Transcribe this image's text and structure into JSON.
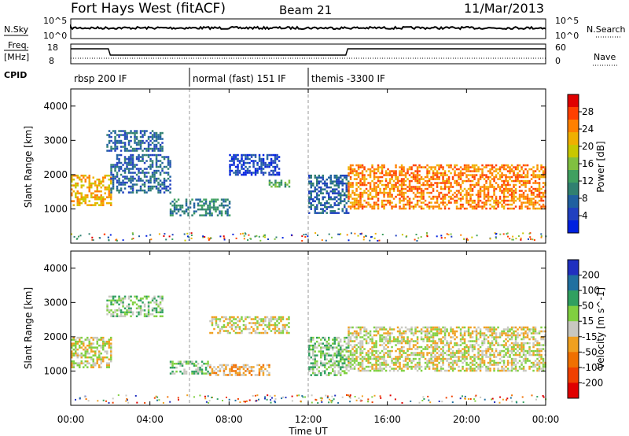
{
  "header": {
    "station": "Fort Hays West (fitACF)",
    "beam": "Beam 21",
    "date": "11/Mar/2013"
  },
  "summary_panels": {
    "nsky_label": "N.Sky",
    "nsky_ticks": [
      "10^5",
      "10^0"
    ],
    "nsearch_label": "N.Search",
    "nsearch_ticks": [
      "10^5",
      "10^0"
    ],
    "freq_label_line1": "Freq.",
    "freq_label_line2": "[MHz]",
    "freq_ticks": [
      "18",
      "8"
    ],
    "nave_label": "Nave",
    "nave_ticks": [
      "60",
      "0"
    ],
    "cpid_label": "CPID",
    "cpid_segments": [
      {
        "label": "rbsp 200 IF",
        "start_hour": 0,
        "end_hour": 6
      },
      {
        "label": "normal (fast) 151 IF",
        "start_hour": 6,
        "end_hour": 12
      },
      {
        "label": "themis -3300 IF",
        "start_hour": 12,
        "end_hour": 24
      }
    ]
  },
  "axes": {
    "y_label": "Slant Range [km]",
    "y_ticks": [
      "4000",
      "3000",
      "2000",
      "1000"
    ],
    "x_label": "Time UT",
    "x_ticks": [
      "00:00",
      "04:00",
      "08:00",
      "12:00",
      "16:00",
      "20:00",
      "00:00"
    ]
  },
  "power_scale": {
    "label": "Power [dB]",
    "ticks": [
      "28",
      "24",
      "20",
      "16",
      "12",
      "8",
      "4"
    ],
    "colors": [
      "#e00000",
      "#ff4000",
      "#ff8000",
      "#f0b000",
      "#c8c800",
      "#80c040",
      "#40a060",
      "#308070",
      "#2060a0",
      "#2040c0",
      "#0020e0"
    ]
  },
  "velocity_scale": {
    "label": "Velocity [m s^-1]",
    "ticks": [
      "200",
      "100",
      "50",
      "15",
      "-15",
      "-50",
      "-100",
      "-200"
    ],
    "colors": [
      "#2030c0",
      "#2070a0",
      "#30a060",
      "#80d040",
      "#c8c8c0",
      "#f0a020",
      "#f07000",
      "#f04000",
      "#e00000"
    ]
  },
  "chart_data": [
    {
      "type": "heatmap",
      "name": "Power",
      "xlabel": "Time UT",
      "ylabel": "Slant Range [km]",
      "xlim": [
        0,
        24
      ],
      "ylim": [
        0,
        4500
      ],
      "units": "dB",
      "echo_bands": [
        {
          "t_start": 0,
          "t_end": 2,
          "range_low": 1100,
          "range_high": 2000,
          "power": 22
        },
        {
          "t_start": 2,
          "t_end": 5,
          "range_low": 1500,
          "range_high": 2600,
          "power": 10
        },
        {
          "t_start": 1.8,
          "t_end": 4.6,
          "range_low": 2700,
          "range_high": 3300,
          "power": 8
        },
        {
          "t_start": 5,
          "t_end": 8,
          "range_low": 800,
          "range_high": 1300,
          "power": 12
        },
        {
          "t_start": 8,
          "t_end": 10.5,
          "range_low": 2000,
          "range_high": 2600,
          "power": 6
        },
        {
          "t_start": 10,
          "t_end": 11,
          "range_low": 1650,
          "range_high": 1850,
          "power": 14
        },
        {
          "t_start": 12,
          "t_end": 14,
          "range_low": 900,
          "range_high": 2000,
          "power": 10
        },
        {
          "t_start": 14,
          "t_end": 24,
          "range_low": 1000,
          "range_high": 2300,
          "power": 24
        }
      ]
    },
    {
      "type": "heatmap",
      "name": "Velocity",
      "xlabel": "Time UT",
      "ylabel": "Slant Range [km]",
      "xlim": [
        0,
        24
      ],
      "ylim": [
        0,
        4500
      ],
      "units": "m s^-1",
      "echo_bands": [
        {
          "t_start": 0,
          "t_end": 2,
          "range_low": 1100,
          "range_high": 2000,
          "velocity": 0
        },
        {
          "t_start": 1.8,
          "t_end": 4.6,
          "range_low": 2600,
          "range_high": 3200,
          "velocity": 60
        },
        {
          "t_start": 5,
          "t_end": 7,
          "range_low": 900,
          "range_high": 1300,
          "velocity": 40
        },
        {
          "t_start": 7,
          "t_end": 10,
          "range_low": 900,
          "range_high": 1200,
          "velocity": -60
        },
        {
          "t_start": 7,
          "t_end": 11,
          "range_low": 2100,
          "range_high": 2600,
          "velocity": 0
        },
        {
          "t_start": 12,
          "t_end": 14,
          "range_low": 900,
          "range_high": 2000,
          "velocity": 30
        },
        {
          "t_start": 14,
          "t_end": 24,
          "range_low": 1000,
          "range_high": 2300,
          "velocity": 0
        }
      ]
    }
  ]
}
